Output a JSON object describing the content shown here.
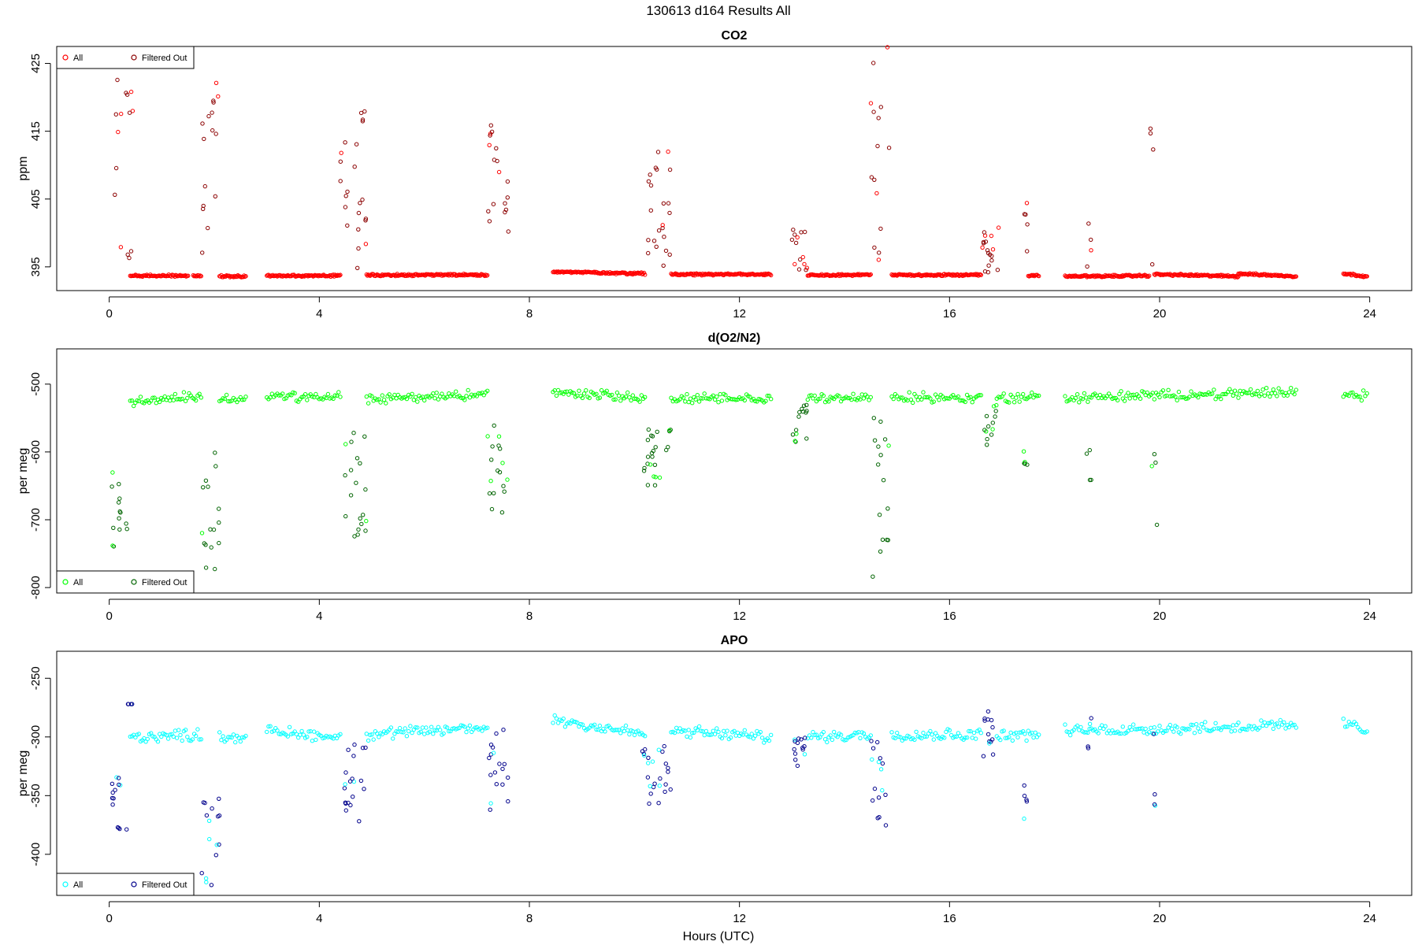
{
  "figure": {
    "title": "130613   d164   Results All",
    "xlabel": "Hours (UTC)"
  },
  "chart_data": [
    {
      "type": "scatter",
      "title": "CO2",
      "xlabel": "",
      "ylabel": "ppm",
      "xlim": [
        -1,
        24.8
      ],
      "ylim": [
        391.5,
        427.5
      ],
      "x_ticks": [
        0,
        4,
        8,
        12,
        16,
        20,
        24
      ],
      "y_ticks": [
        395,
        405,
        415,
        425
      ],
      "grid": false,
      "legend_position": "top-left",
      "legend": [
        {
          "label": "All",
          "color": "#ff0000"
        },
        {
          "label": "Filtered Out",
          "color": "#8b0000"
        }
      ],
      "baseline_segments": [
        {
          "x_start": 0.4,
          "x_end": 1.5,
          "y_start": 393.7,
          "y_end": 393.7
        },
        {
          "x_start": 1.6,
          "x_end": 1.75,
          "y_start": 393.7,
          "y_end": 393.7
        },
        {
          "x_start": 2.1,
          "x_end": 2.6,
          "y_start": 393.6,
          "y_end": 393.6
        },
        {
          "x_start": 3.0,
          "x_end": 4.4,
          "y_start": 393.7,
          "y_end": 393.7
        },
        {
          "x_start": 4.9,
          "x_end": 7.2,
          "y_start": 393.8,
          "y_end": 393.8
        },
        {
          "x_start": 8.45,
          "x_end": 10.2,
          "y_start": 394.3,
          "y_end": 394.0
        },
        {
          "x_start": 10.7,
          "x_end": 12.6,
          "y_start": 393.9,
          "y_end": 393.9
        },
        {
          "x_start": 13.3,
          "x_end": 14.5,
          "y_start": 393.8,
          "y_end": 393.8
        },
        {
          "x_start": 14.9,
          "x_end": 16.6,
          "y_start": 393.8,
          "y_end": 393.8
        },
        {
          "x_start": 17.5,
          "x_end": 17.7,
          "y_start": 393.7,
          "y_end": 393.7
        },
        {
          "x_start": 18.2,
          "x_end": 19.8,
          "y_start": 393.6,
          "y_end": 393.7
        },
        {
          "x_start": 19.9,
          "x_end": 21.5,
          "y_start": 393.9,
          "y_end": 393.6
        },
        {
          "x_start": 21.5,
          "x_end": 22.6,
          "y_start": 394.0,
          "y_end": 393.6
        },
        {
          "x_start": 23.5,
          "x_end": 23.95,
          "y_start": 394.0,
          "y_end": 393.6
        }
      ],
      "spikes": [
        {
          "x_start": 0.05,
          "x_end": 0.45,
          "y_min": 396,
          "y_max": 427
        },
        {
          "x_start": 1.75,
          "x_end": 2.1,
          "y_min": 397,
          "y_max": 426
        },
        {
          "x_start": 4.4,
          "x_end": 4.9,
          "y_min": 394.5,
          "y_max": 419
        },
        {
          "x_start": 7.2,
          "x_end": 7.6,
          "y_min": 399,
          "y_max": 416
        },
        {
          "x_start": 10.2,
          "x_end": 10.7,
          "y_min": 395,
          "y_max": 412
        },
        {
          "x_start": 13.0,
          "x_end": 13.3,
          "y_min": 394.5,
          "y_max": 401
        },
        {
          "x_start": 14.5,
          "x_end": 14.85,
          "y_min": 394.5,
          "y_max": 429
        },
        {
          "x_start": 16.6,
          "x_end": 17.0,
          "y_min": 394.2,
          "y_max": 402.5
        },
        {
          "x_start": 17.4,
          "x_end": 17.5,
          "y_min": 394.5,
          "y_max": 406
        },
        {
          "x_start": 18.6,
          "x_end": 18.7,
          "y_min": 394.5,
          "y_max": 411
        },
        {
          "x_start": 19.8,
          "x_end": 19.9,
          "y_min": 394.5,
          "y_max": 418
        }
      ]
    },
    {
      "type": "scatter",
      "title": "d(O2/N2)",
      "xlabel": "",
      "ylabel": "per meg",
      "xlim": [
        -1,
        24.8
      ],
      "ylim": [
        -808,
        -448
      ],
      "x_ticks": [
        0,
        4,
        8,
        12,
        16,
        20,
        24
      ],
      "y_ticks": [
        -800,
        -700,
        -600,
        -500
      ],
      "grid": false,
      "legend_position": "bottom-left",
      "legend": [
        {
          "label": "All",
          "color": "#00ff00"
        },
        {
          "label": "Filtered Out",
          "color": "#006400"
        }
      ],
      "baseline_segments": [
        {
          "x_start": 0.4,
          "x_end": 1.75,
          "y_start": -525,
          "y_end": -518
        },
        {
          "x_start": 2.1,
          "x_end": 2.6,
          "y_start": -522,
          "y_end": -522
        },
        {
          "x_start": 3.0,
          "x_end": 4.4,
          "y_start": -518,
          "y_end": -520
        },
        {
          "x_start": 4.9,
          "x_end": 7.2,
          "y_start": -522,
          "y_end": -515
        },
        {
          "x_start": 8.45,
          "x_end": 10.2,
          "y_start": -512,
          "y_end": -520
        },
        {
          "x_start": 10.7,
          "x_end": 12.6,
          "y_start": -522,
          "y_end": -522
        },
        {
          "x_start": 13.3,
          "x_end": 14.5,
          "y_start": -520,
          "y_end": -520
        },
        {
          "x_start": 14.9,
          "x_end": 16.6,
          "y_start": -520,
          "y_end": -520
        },
        {
          "x_start": 16.9,
          "x_end": 17.7,
          "y_start": -520,
          "y_end": -520
        },
        {
          "x_start": 18.2,
          "x_end": 22.6,
          "y_start": -520,
          "y_end": -512
        },
        {
          "x_start": 23.5,
          "x_end": 23.95,
          "y_start": -515,
          "y_end": -518
        }
      ],
      "spikes": [
        {
          "x_start": 0.05,
          "x_end": 0.35,
          "y_min": -755,
          "y_max": -630
        },
        {
          "x_start": 1.75,
          "x_end": 2.1,
          "y_min": -780,
          "y_max": -595
        },
        {
          "x_start": 4.45,
          "x_end": 4.9,
          "y_min": -725,
          "y_max": -560
        },
        {
          "x_start": 7.2,
          "x_end": 7.6,
          "y_min": -690,
          "y_max": -560
        },
        {
          "x_start": 10.15,
          "x_end": 10.7,
          "y_min": -650,
          "y_max": -560
        },
        {
          "x_start": 13.0,
          "x_end": 13.3,
          "y_min": -590,
          "y_max": -530
        },
        {
          "x_start": 14.5,
          "x_end": 14.85,
          "y_min": -785,
          "y_max": -530
        },
        {
          "x_start": 16.6,
          "x_end": 16.9,
          "y_min": -605,
          "y_max": -530
        },
        {
          "x_start": 17.4,
          "x_end": 17.5,
          "y_min": -625,
          "y_max": -595
        },
        {
          "x_start": 18.6,
          "x_end": 18.7,
          "y_min": -660,
          "y_max": -595
        },
        {
          "x_start": 19.85,
          "x_end": 19.95,
          "y_min": -715,
          "y_max": -570
        }
      ]
    },
    {
      "type": "scatter",
      "title": "APO",
      "xlabel": "Hours (UTC)",
      "ylabel": "per meg",
      "xlim": [
        -1,
        24.8
      ],
      "ylim": [
        -435,
        -227
      ],
      "x_ticks": [
        0,
        4,
        8,
        12,
        16,
        20,
        24
      ],
      "y_ticks": [
        -400,
        -350,
        -300,
        -250
      ],
      "grid": false,
      "legend_position": "bottom-left",
      "legend": [
        {
          "label": "All",
          "color": "#00ffff"
        },
        {
          "label": "Filtered Out",
          "color": "#00008b"
        }
      ],
      "baseline_segments": [
        {
          "x_start": 0.4,
          "x_end": 1.75,
          "y_start": -300,
          "y_end": -298
        },
        {
          "x_start": 2.1,
          "x_end": 2.6,
          "y_start": -300,
          "y_end": -300
        },
        {
          "x_start": 3.0,
          "x_end": 4.4,
          "y_start": -295,
          "y_end": -300
        },
        {
          "x_start": 4.9,
          "x_end": 7.2,
          "y_start": -298,
          "y_end": -292
        },
        {
          "x_start": 8.45,
          "x_end": 10.2,
          "y_start": -285,
          "y_end": -298
        },
        {
          "x_start": 10.7,
          "x_end": 12.6,
          "y_start": -295,
          "y_end": -300
        },
        {
          "x_start": 13.3,
          "x_end": 14.5,
          "y_start": -300,
          "y_end": -298
        },
        {
          "x_start": 14.9,
          "x_end": 16.6,
          "y_start": -298,
          "y_end": -298
        },
        {
          "x_start": 16.9,
          "x_end": 17.7,
          "y_start": -298,
          "y_end": -298
        },
        {
          "x_start": 18.2,
          "x_end": 22.6,
          "y_start": -295,
          "y_end": -290
        },
        {
          "x_start": 23.5,
          "x_end": 23.95,
          "y_start": -288,
          "y_end": -295
        }
      ],
      "spikes": [
        {
          "x_start": 0.05,
          "x_end": 0.35,
          "y_min": -380,
          "y_max": -330
        },
        {
          "x_start": 0.35,
          "x_end": 0.45,
          "y_min": -272,
          "y_max": -272
        },
        {
          "x_start": 1.75,
          "x_end": 2.1,
          "y_min": -428,
          "y_max": -350
        },
        {
          "x_start": 4.45,
          "x_end": 4.9,
          "y_min": -373,
          "y_max": -305
        },
        {
          "x_start": 7.2,
          "x_end": 7.6,
          "y_min": -368,
          "y_max": -290
        },
        {
          "x_start": 10.15,
          "x_end": 10.7,
          "y_min": -357,
          "y_max": -305
        },
        {
          "x_start": 13.0,
          "x_end": 13.3,
          "y_min": -325,
          "y_max": -300
        },
        {
          "x_start": 14.5,
          "x_end": 14.85,
          "y_min": -380,
          "y_max": -300
        },
        {
          "x_start": 16.6,
          "x_end": 16.9,
          "y_min": -325,
          "y_max": -275
        },
        {
          "x_start": 17.4,
          "x_end": 17.5,
          "y_min": -370,
          "y_max": -340
        },
        {
          "x_start": 18.6,
          "x_end": 18.7,
          "y_min": -340,
          "y_max": -280
        },
        {
          "x_start": 19.85,
          "x_end": 19.95,
          "y_min": -362,
          "y_max": -295
        }
      ]
    }
  ]
}
